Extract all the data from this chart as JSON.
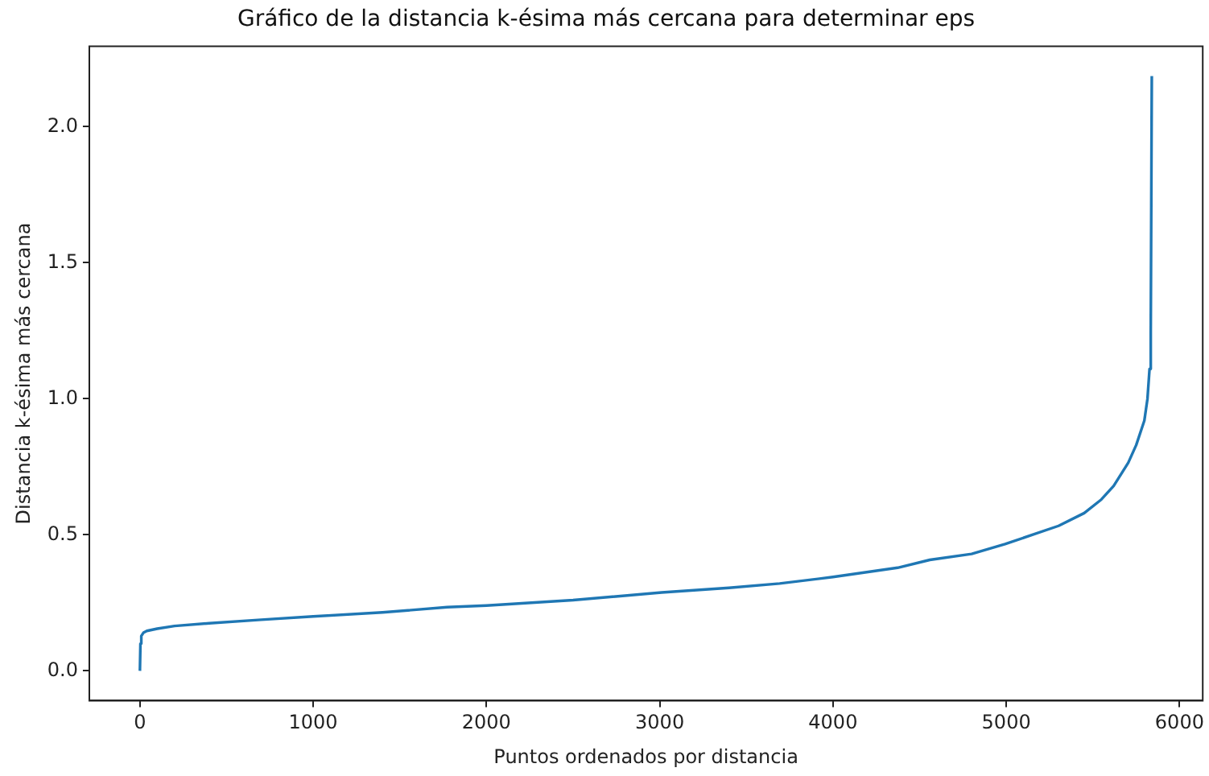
{
  "chart_data": {
    "type": "line",
    "title": "Gráfico de la distancia k-ésima más cercana para determinar eps",
    "xlabel": "Puntos ordenados por distancia",
    "ylabel": "Distancia k-ésima más cercana",
    "x": [
      0,
      3,
      8,
      20,
      40,
      100,
      200,
      400,
      700,
      1000,
      1400,
      1773,
      2000,
      2500,
      3011,
      3400,
      3692,
      4000,
      4373,
      4559,
      4800,
      4993,
      5150,
      5302,
      5450,
      5549,
      5620,
      5704,
      5750,
      5797,
      5815,
      5827,
      5834,
      5840
    ],
    "series": [
      {
        "color": "#1f77b4",
        "values": [
          0,
          0.1,
          0.128,
          0.14,
          0.147,
          0.155,
          0.165,
          0.175,
          0.188,
          0.2,
          0.215,
          0.234,
          0.24,
          0.26,
          0.288,
          0.305,
          0.321,
          0.345,
          0.379,
          0.408,
          0.43,
          0.466,
          0.5,
          0.533,
          0.58,
          0.63,
          0.68,
          0.765,
          0.83,
          0.92,
          1.0,
          1.11,
          1.25,
          2.186
        ]
      }
    ],
    "xlim": [
      -292,
      6134
    ],
    "ylim": [
      -0.1095,
      2.2955
    ],
    "xticks": [
      0,
      1000,
      2000,
      3000,
      4000,
      5000,
      6000
    ],
    "yticks": [
      {
        "value": 0,
        "label": "0.0"
      },
      0.5,
      {
        "value": 1,
        "label": "1.0"
      },
      1.5,
      {
        "value": 2,
        "label": "2.0"
      }
    ],
    "grid": false,
    "legend": false,
    "marker": "none",
    "line_style": "solid"
  }
}
